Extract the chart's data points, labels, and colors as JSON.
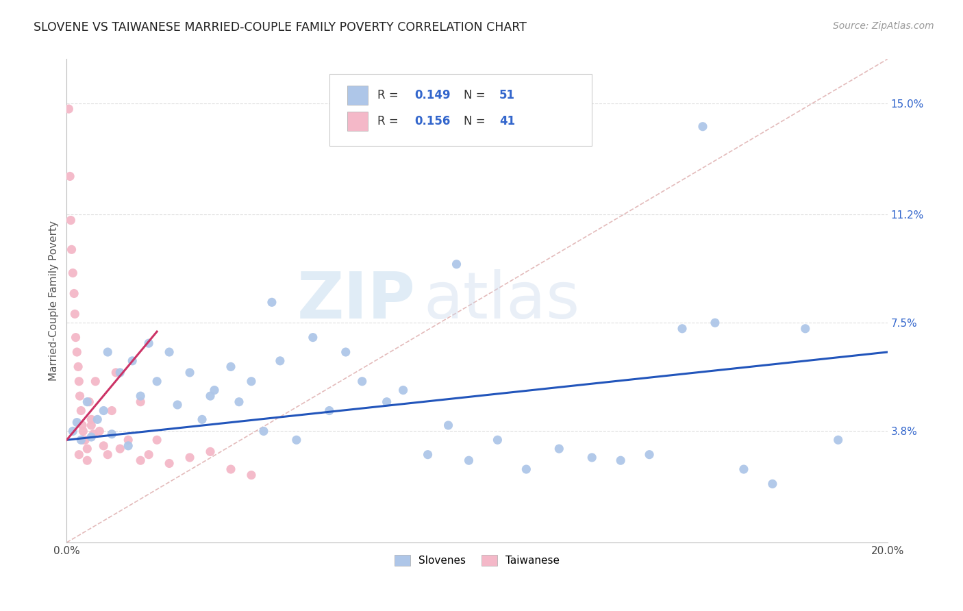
{
  "title": "SLOVENE VS TAIWANESE MARRIED-COUPLE FAMILY POVERTY CORRELATION CHART",
  "source": "Source: ZipAtlas.com",
  "ylabel": "Married-Couple Family Poverty",
  "ytick_labels": [
    "3.8%",
    "7.5%",
    "11.2%",
    "15.0%"
  ],
  "ytick_values": [
    3.8,
    7.5,
    11.2,
    15.0
  ],
  "xlim": [
    0.0,
    20.0
  ],
  "ylim": [
    0.0,
    16.5
  ],
  "slovene_color": "#aec6e8",
  "taiwanese_color": "#f4b8c8",
  "slovene_line_color": "#2255bb",
  "taiwanese_line_color": "#cc3366",
  "diagonal_line_color": "#ddaaaa",
  "background_color": "#ffffff",
  "grid_color": "#dddddd",
  "slovene_x": [
    0.15,
    0.25,
    0.35,
    0.5,
    0.6,
    0.75,
    0.9,
    1.0,
    1.1,
    1.3,
    1.5,
    1.6,
    1.8,
    2.0,
    2.2,
    2.5,
    2.7,
    3.0,
    3.3,
    3.6,
    4.0,
    4.2,
    4.5,
    4.8,
    5.2,
    5.6,
    6.0,
    6.4,
    6.8,
    7.2,
    7.8,
    8.2,
    8.8,
    9.3,
    9.8,
    10.5,
    11.2,
    12.0,
    12.8,
    13.5,
    14.2,
    15.0,
    15.8,
    16.5,
    17.2,
    18.0,
    18.8,
    3.5,
    5.0,
    9.5,
    15.5
  ],
  "slovene_y": [
    3.8,
    4.1,
    3.5,
    4.8,
    3.6,
    4.2,
    4.5,
    6.5,
    3.7,
    5.8,
    3.3,
    6.2,
    5.0,
    6.8,
    5.5,
    6.5,
    4.7,
    5.8,
    4.2,
    5.2,
    6.0,
    4.8,
    5.5,
    3.8,
    6.2,
    3.5,
    7.0,
    4.5,
    6.5,
    5.5,
    4.8,
    5.2,
    3.0,
    4.0,
    2.8,
    3.5,
    2.5,
    3.2,
    2.9,
    2.8,
    3.0,
    7.3,
    7.5,
    2.5,
    2.0,
    7.3,
    3.5,
    5.0,
    8.2,
    9.5,
    14.2
  ],
  "taiwanese_x": [
    0.05,
    0.08,
    0.1,
    0.12,
    0.15,
    0.18,
    0.2,
    0.22,
    0.25,
    0.28,
    0.3,
    0.32,
    0.35,
    0.38,
    0.4,
    0.45,
    0.5,
    0.55,
    0.6,
    0.65,
    0.7,
    0.8,
    0.9,
    1.0,
    1.1,
    1.3,
    1.5,
    1.8,
    2.0,
    2.5,
    3.0,
    3.5,
    4.0,
    4.5,
    1.2,
    0.6,
    0.4,
    1.8,
    2.2,
    0.3,
    0.5
  ],
  "taiwanese_y": [
    14.8,
    12.5,
    11.0,
    10.0,
    9.2,
    8.5,
    7.8,
    7.0,
    6.5,
    6.0,
    5.5,
    5.0,
    4.5,
    4.0,
    3.8,
    3.5,
    3.2,
    4.8,
    4.2,
    3.7,
    5.5,
    3.8,
    3.3,
    3.0,
    4.5,
    3.2,
    3.5,
    2.8,
    3.0,
    2.7,
    2.9,
    3.1,
    2.5,
    2.3,
    5.8,
    4.0,
    3.5,
    4.8,
    3.5,
    3.0,
    2.8
  ],
  "slovene_line_x0": 0.0,
  "slovene_line_y0": 3.5,
  "slovene_line_x1": 20.0,
  "slovene_line_y1": 6.5,
  "taiwanese_line_x0": 0.0,
  "taiwanese_line_y0": 3.5,
  "taiwanese_line_x1": 2.2,
  "taiwanese_line_y1": 7.2,
  "diagonal_line_x0": 0.0,
  "diagonal_line_y0": 0.0,
  "diagonal_line_x1": 20.0,
  "diagonal_line_y1": 16.5
}
